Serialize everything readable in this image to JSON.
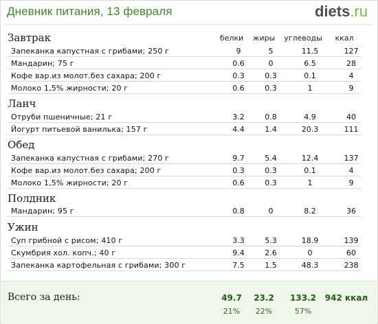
{
  "header": {
    "title": "Дневник питания, 13 февраля",
    "logo_main": "diets",
    "logo_suffix": ".ru"
  },
  "columns": {
    "protein": "белки",
    "fat": "жиры",
    "carbs": "углеводы",
    "kcal": "ккал"
  },
  "meals": [
    {
      "title": "Завтрак",
      "items": [
        {
          "name": "Запеканка капустная с грибами; 250 г",
          "protein": "9",
          "fat": "5",
          "carbs": "11.5",
          "kcal": "127"
        },
        {
          "name": "Мандарин; 75 г",
          "protein": "0.6",
          "fat": "0",
          "carbs": "6.5",
          "kcal": "28"
        },
        {
          "name": "Кофе вар.из молот.без сахара; 200 г",
          "protein": "0.3",
          "fat": "0.3",
          "carbs": "0.1",
          "kcal": "4"
        },
        {
          "name": "Молоко 1,5% жирности; 20 г",
          "protein": "0.6",
          "fat": "0.3",
          "carbs": "1",
          "kcal": "9"
        }
      ]
    },
    {
      "title": "Ланч",
      "items": [
        {
          "name": "Отруби пшеничные; 21 г",
          "protein": "3.2",
          "fat": "0.8",
          "carbs": "4.9",
          "kcal": "40"
        },
        {
          "name": "Йогурт питьевой ванилька; 157 г",
          "protein": "4.4",
          "fat": "1.4",
          "carbs": "20.3",
          "kcal": "111"
        }
      ]
    },
    {
      "title": "Обед",
      "items": [
        {
          "name": "Запеканка капустная с грибами; 270 г",
          "protein": "9.7",
          "fat": "5.4",
          "carbs": "12.4",
          "kcal": "137"
        },
        {
          "name": "Кофе вар.из молот.без сахара; 200 г",
          "protein": "0.3",
          "fat": "0.3",
          "carbs": "0.1",
          "kcal": "4"
        },
        {
          "name": "Молоко 1,5% жирности; 20 г",
          "protein": "0.6",
          "fat": "0.3",
          "carbs": "1",
          "kcal": "9"
        }
      ]
    },
    {
      "title": "Полдник",
      "items": [
        {
          "name": "Мандарин; 95 г",
          "protein": "0.8",
          "fat": "0",
          "carbs": "8.2",
          "kcal": "36"
        }
      ]
    },
    {
      "title": "Ужин",
      "items": [
        {
          "name": "Суп грибной с рисом; 410 г",
          "protein": "3.3",
          "fat": "5.3",
          "carbs": "18.9",
          "kcal": "139"
        },
        {
          "name": "Скумбрия хол. копч.; 40 г",
          "protein": "9.4",
          "fat": "2.6",
          "carbs": "0",
          "kcal": "60"
        },
        {
          "name": "Запеканка картофельная с грибами; 300 г",
          "protein": "7.5",
          "fat": "1.5",
          "carbs": "48.3",
          "kcal": "238"
        }
      ]
    }
  ],
  "totals": {
    "label": "Всего за день:",
    "protein": "49.7",
    "fat": "23.2",
    "carbs": "133.2",
    "kcal": "942 ккал",
    "protein_pct": "21%",
    "fat_pct": "22%",
    "carbs_pct": "57%"
  }
}
